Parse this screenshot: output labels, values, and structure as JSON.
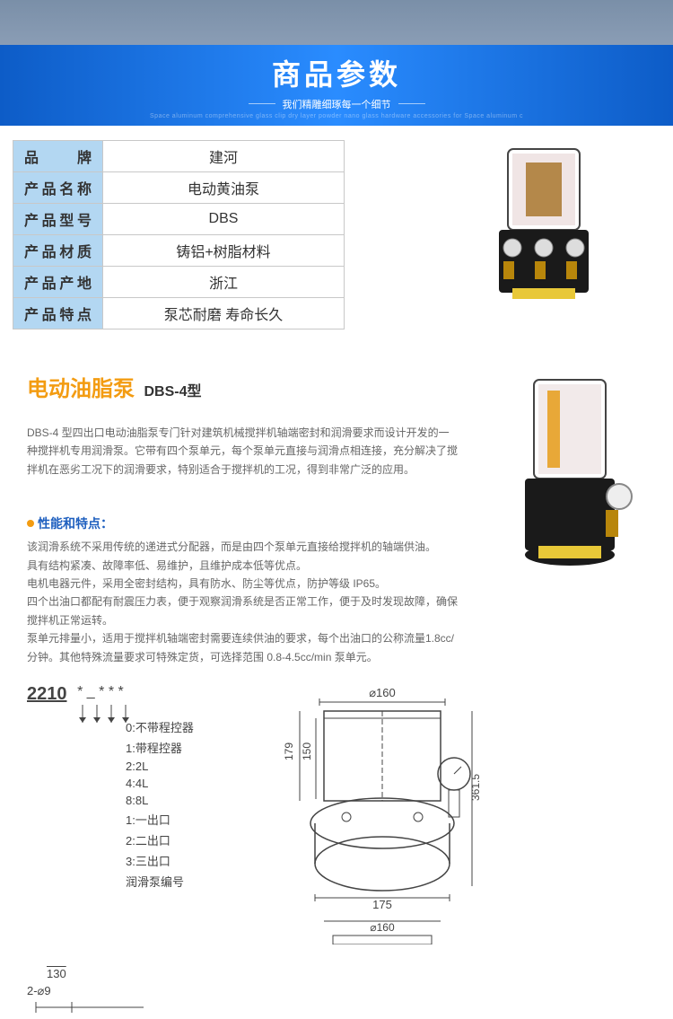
{
  "banner": {
    "title": "商品参数",
    "subtitle": "我们精雕细琢每一个细节",
    "tagline": "Space aluminum comprehensive glass clip dry layer powder nano glass hardware accessories for Space aluminum c",
    "title_color": "#ffffff",
    "bg_gradient": [
      "#0d5cc7",
      "#2a8cff",
      "#0d5cc7"
    ]
  },
  "spec_table": {
    "header_bg": "#b3d7f2",
    "border_color": "#c8c8c8",
    "rows": [
      {
        "k": "品　　牌",
        "v": "建河"
      },
      {
        "k": "产品名称",
        "v": "电动黄油泵"
      },
      {
        "k": "产品型号",
        "v": "DBS"
      },
      {
        "k": "产品材质",
        "v": "铸铝+树脂材料"
      },
      {
        "k": "产品产地",
        "v": "浙江"
      },
      {
        "k": "产品特点",
        "v": "泵芯耐磨 寿命长久"
      }
    ]
  },
  "description": {
    "title": "电动油脂泵",
    "title_color": "#f39c12",
    "subtitle": "DBS-4型",
    "para": "DBS-4 型四出口电动油脂泵专门针对建筑机械搅拌机轴端密封和润滑要求而设计开发的一种搅拌机专用润滑泵。它带有四个泵单元，每个泵单元直接与润滑点相连接，充分解决了搅拌机在恶劣工况下的润滑要求，特别适合于搅拌机的工况，得到非常广泛的应用。"
  },
  "features": {
    "heading": "性能和特点：",
    "heading_color": "#1e5fbf",
    "dot_color": "#f39c12",
    "lines": [
      "该润滑系统不采用传统的递进式分配器，而是由四个泵单元直接给搅拌机的轴端供油。",
      "具有结构紧凑、故障率低、易维护，且维护成本低等优点。",
      "电机电器元件，采用全密封结构，具有防水、防尘等优点，防护等级 IP65。",
      "四个出油口都配有耐震压力表，便于观察润滑系统是否正常工作，便于及时发现故障，确保搅拌机正常运转。",
      "泵单元排量小，适用于搅拌机轴端密封需要连续供油的要求，每个出油口的公称流量1.8cc/分钟。其他特殊流量要求可特殊定货，可选择范围 0.8-4.5cc/min 泵单元。"
    ]
  },
  "model_code": {
    "number": "2210",
    "stars": "* _ * * *",
    "options": [
      "0:不带程控器",
      "1:带程控器",
      "2:2L",
      "4:4L",
      "8:8L",
      "1:一出口",
      "2:二出口",
      "3:三出口",
      "润滑泵编号"
    ]
  },
  "tech_drawing": {
    "top_dim": "⌀160",
    "h1": "179",
    "h2": "150",
    "h3": "361.5",
    "w1": "175",
    "bot_dim": "⌀160",
    "line_color": "#333333"
  },
  "bottom_dims": {
    "d1": "130",
    "d2": "2-⌀9"
  }
}
